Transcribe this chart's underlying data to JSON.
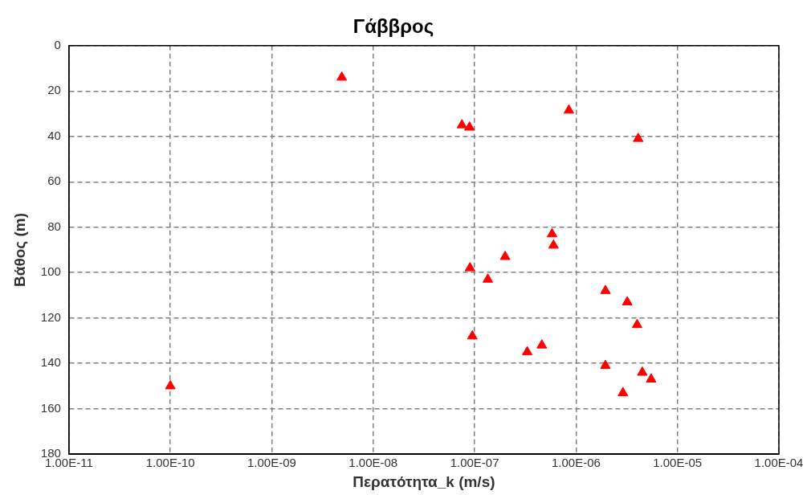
{
  "chart_data": {
    "type": "scatter",
    "title": "Γάββρος",
    "xlabel": "Περατότητα_k (m/s)",
    "ylabel": "Βάθος (m)",
    "log": "x",
    "grid": true,
    "marker": "triangle",
    "legend": false,
    "x": [
      4.9e-09,
      7.5e-08,
      8.9e-08,
      8.5e-07,
      4.1e-06,
      5.8e-07,
      6e-07,
      2e-07,
      9e-08,
      1.35e-07,
      1.95e-06,
      3.2e-06,
      4e-06,
      9.5e-08,
      4.6e-07,
      3.3e-07,
      1.95e-06,
      4.5e-06,
      5.5e-06,
      2.9e-06,
      1e-10
    ],
    "series": [
      {
        "color": "#ff0000",
        "values": [
          14,
          35,
          36,
          28.5,
          41,
          83,
          88,
          93,
          98,
          103,
          108,
          113,
          123,
          128,
          132,
          135,
          141,
          144,
          147,
          153,
          150
        ]
      }
    ],
    "xlim": [
      1e-11,
      0.0001
    ],
    "xticks": [
      {
        "value": 1e-11,
        "label": "1.00E-11"
      },
      {
        "value": 1e-10,
        "label": "1.00E-10"
      },
      {
        "value": 1e-09,
        "label": "1.00E-09"
      },
      {
        "value": 1e-08,
        "label": "1.00E-08"
      },
      {
        "value": 1e-07,
        "label": "1.00E-07"
      },
      {
        "value": 1e-06,
        "label": "1.00E-06"
      },
      {
        "value": 1e-05,
        "label": "1.00E-05"
      },
      {
        "value": 0.0001,
        "label": "1.00E-04"
      }
    ],
    "ylim": [
      180,
      0
    ],
    "yticks": [
      0,
      20,
      40,
      60,
      80,
      100,
      120,
      140,
      160,
      180
    ]
  }
}
